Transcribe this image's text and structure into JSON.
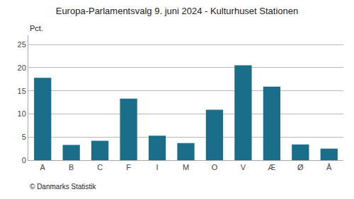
{
  "chart_data": {
    "type": "bar",
    "title": "Europa-Parlamentsvalg 9. juni 2024 - Kulturhuset Stationen",
    "ylabel": "Pct.",
    "categories": [
      "A",
      "B",
      "C",
      "F",
      "I",
      "M",
      "O",
      "V",
      "Æ",
      "Ø",
      "Å"
    ],
    "values": [
      17.8,
      3.3,
      4.2,
      13.3,
      5.3,
      3.7,
      10.9,
      20.5,
      15.9,
      3.4,
      2.5
    ],
    "color": "#1a6e8a",
    "ylim": [
      0,
      27
    ],
    "yticks": [
      0,
      5,
      10,
      15,
      20,
      25
    ],
    "grid": true,
    "annotations": [
      "© Danmarks Statistik"
    ]
  }
}
